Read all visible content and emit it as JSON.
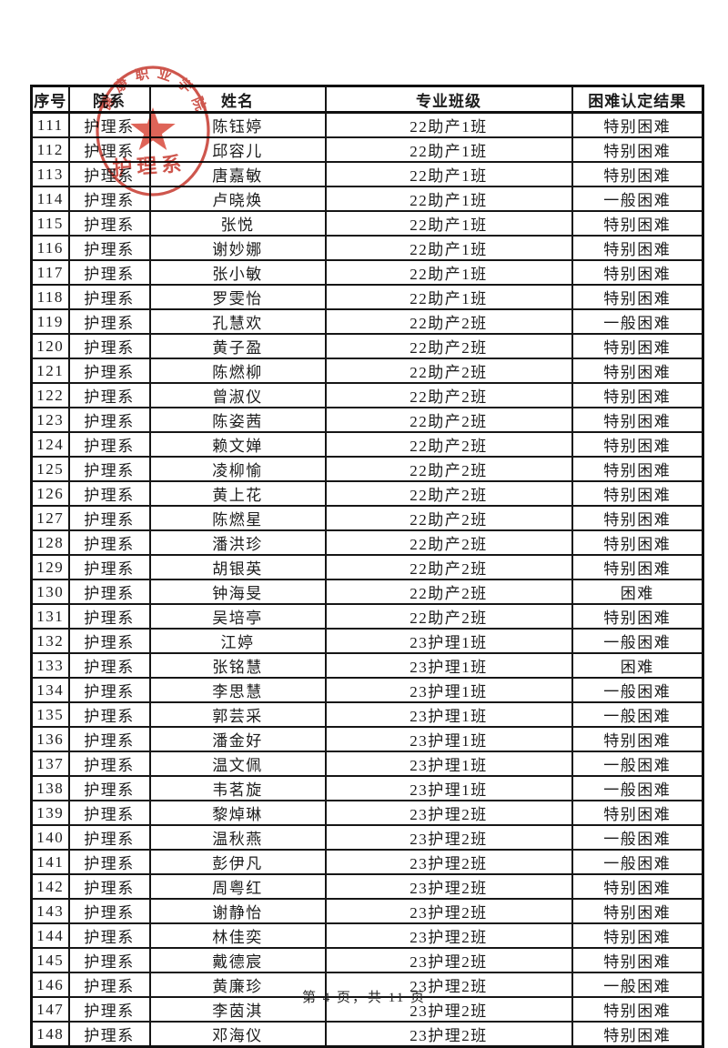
{
  "page": {
    "footer": "第 4 页，共 11 页"
  },
  "colors": {
    "seal_red": "#c6382d",
    "table_border": "#161616",
    "text": "#1c1c1c"
  },
  "stamp": {
    "arc_text": "健康职业学院",
    "department_text": "护理系"
  },
  "table": {
    "columns": [
      "序号",
      "院系",
      "姓名",
      "专业班级",
      "困难认定结果"
    ],
    "rows": [
      [
        "111",
        "护理系",
        "陈钰婷",
        "22助产1班",
        "特别困难"
      ],
      [
        "112",
        "护理系",
        "邱容儿",
        "22助产1班",
        "特别困难"
      ],
      [
        "113",
        "护理系",
        "唐嘉敏",
        "22助产1班",
        "特别困难"
      ],
      [
        "114",
        "护理系",
        "卢晓焕",
        "22助产1班",
        "一般困难"
      ],
      [
        "115",
        "护理系",
        "张悦",
        "22助产1班",
        "特别困难"
      ],
      [
        "116",
        "护理系",
        "谢妙娜",
        "22助产1班",
        "特别困难"
      ],
      [
        "117",
        "护理系",
        "张小敏",
        "22助产1班",
        "特别困难"
      ],
      [
        "118",
        "护理系",
        "罗雯怡",
        "22助产1班",
        "特别困难"
      ],
      [
        "119",
        "护理系",
        "孔慧欢",
        "22助产2班",
        "一般困难"
      ],
      [
        "120",
        "护理系",
        "黄子盈",
        "22助产2班",
        "特别困难"
      ],
      [
        "121",
        "护理系",
        "陈燃柳",
        "22助产2班",
        "特别困难"
      ],
      [
        "122",
        "护理系",
        "曾淑仪",
        "22助产2班",
        "特别困难"
      ],
      [
        "123",
        "护理系",
        "陈姿茜",
        "22助产2班",
        "特别困难"
      ],
      [
        "124",
        "护理系",
        "赖文婵",
        "22助产2班",
        "特别困难"
      ],
      [
        "125",
        "护理系",
        "凌柳愉",
        "22助产2班",
        "特别困难"
      ],
      [
        "126",
        "护理系",
        "黄上花",
        "22助产2班",
        "特别困难"
      ],
      [
        "127",
        "护理系",
        "陈燃星",
        "22助产2班",
        "特别困难"
      ],
      [
        "128",
        "护理系",
        "潘洪珍",
        "22助产2班",
        "特别困难"
      ],
      [
        "129",
        "护理系",
        "胡银英",
        "22助产2班",
        "特别困难"
      ],
      [
        "130",
        "护理系",
        "钟海旻",
        "22助产2班",
        "困难"
      ],
      [
        "131",
        "护理系",
        "吴培亭",
        "22助产2班",
        "特别困难"
      ],
      [
        "132",
        "护理系",
        "江婷",
        "23护理1班",
        "一般困难"
      ],
      [
        "133",
        "护理系",
        "张铭慧",
        "23护理1班",
        "困难"
      ],
      [
        "134",
        "护理系",
        "李思慧",
        "23护理1班",
        "一般困难"
      ],
      [
        "135",
        "护理系",
        "郭芸采",
        "23护理1班",
        "一般困难"
      ],
      [
        "136",
        "护理系",
        "潘金好",
        "23护理1班",
        "特别困难"
      ],
      [
        "137",
        "护理系",
        "温文佩",
        "23护理1班",
        "一般困难"
      ],
      [
        "138",
        "护理系",
        "韦茗旋",
        "23护理1班",
        "一般困难"
      ],
      [
        "139",
        "护理系",
        "黎焯琳",
        "23护理2班",
        "特别困难"
      ],
      [
        "140",
        "护理系",
        "温秋燕",
        "23护理2班",
        "一般困难"
      ],
      [
        "141",
        "护理系",
        "彭伊凡",
        "23护理2班",
        "一般困难"
      ],
      [
        "142",
        "护理系",
        "周粤红",
        "23护理2班",
        "特别困难"
      ],
      [
        "143",
        "护理系",
        "谢静怡",
        "23护理2班",
        "特别困难"
      ],
      [
        "144",
        "护理系",
        "林佳奕",
        "23护理2班",
        "特别困难"
      ],
      [
        "145",
        "护理系",
        "戴德宸",
        "23护理2班",
        "特别困难"
      ],
      [
        "146",
        "护理系",
        "黄廉珍",
        "23护理2班",
        "一般困难"
      ],
      [
        "147",
        "护理系",
        "李茵淇",
        "23护理2班",
        "特别困难"
      ],
      [
        "148",
        "护理系",
        "邓海仪",
        "23护理2班",
        "特别困难"
      ]
    ]
  }
}
